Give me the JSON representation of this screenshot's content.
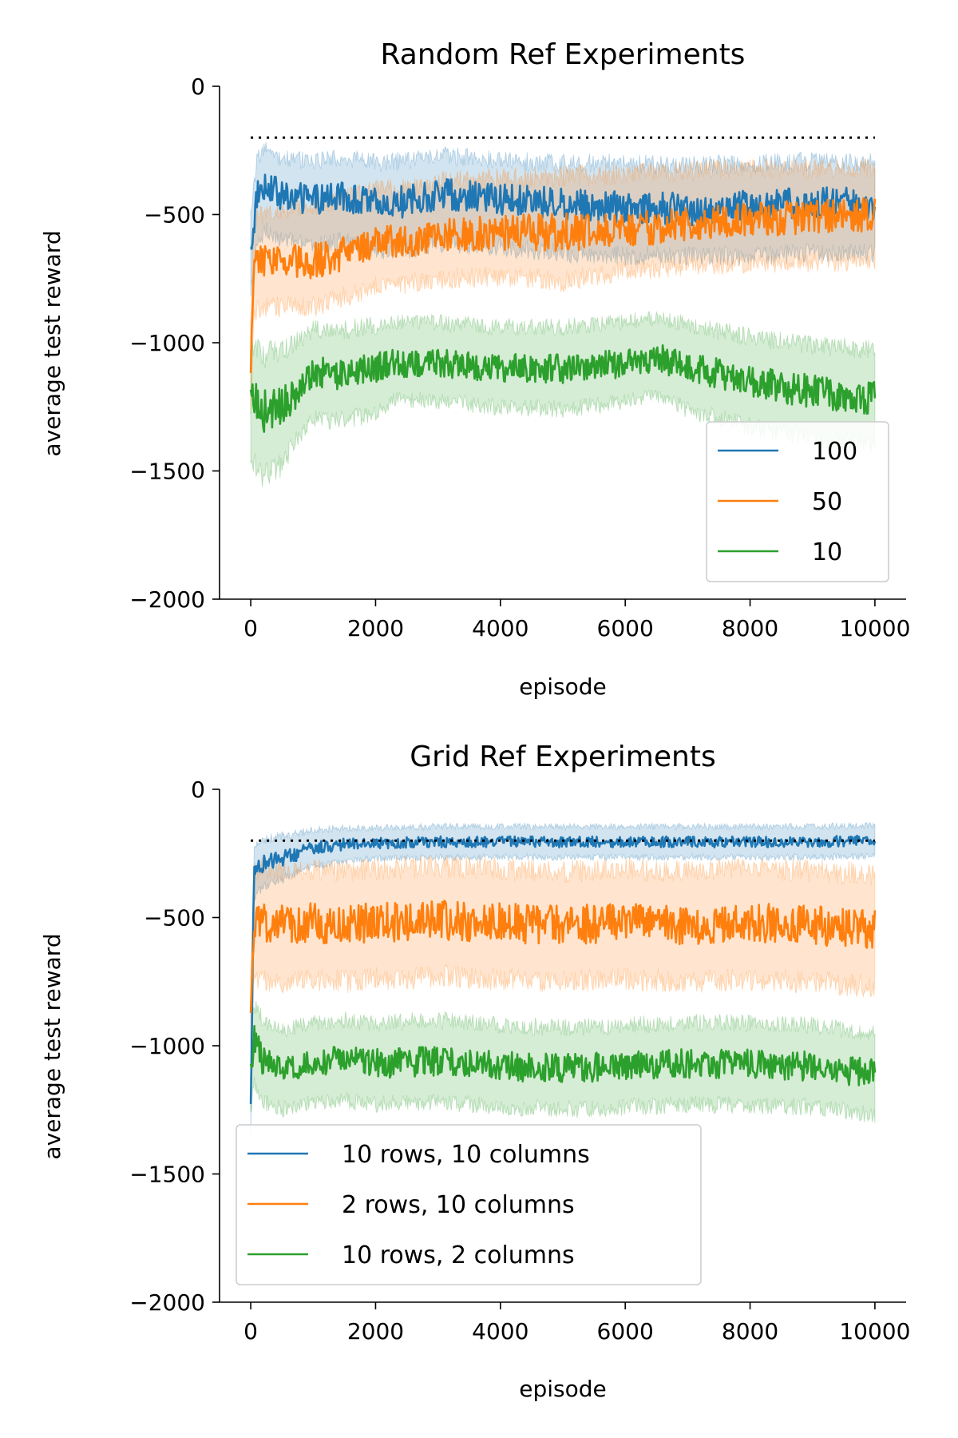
{
  "chart_data": [
    {
      "type": "line",
      "title": "Random Ref Experiments",
      "xlabel": "episode",
      "ylabel": "average test reward",
      "xlim": [
        -500,
        10500
      ],
      "ylim": [
        -2000,
        0
      ],
      "xticks": [
        0,
        2000,
        4000,
        6000,
        8000,
        10000
      ],
      "yticks": [
        0,
        -500,
        -1000,
        -1500,
        -2000
      ],
      "xtick_labels": [
        "0",
        "2000",
        "4000",
        "6000",
        "8000",
        "10000"
      ],
      "ytick_labels": [
        "0",
        "−500",
        "−1000",
        "−1500",
        "−2000"
      ],
      "grid": false,
      "legend_position": "lower-right",
      "reference_line": {
        "y": -200,
        "x": [
          0,
          10000
        ],
        "style": "dotted",
        "color": "#000000"
      },
      "series": [
        {
          "name": "100",
          "color": "#1f77b4",
          "x": [
            0,
            100,
            250,
            500,
            1000,
            1500,
            2000,
            2500,
            3000,
            4000,
            5000,
            6000,
            7000,
            8000,
            9000,
            10000
          ],
          "y": [
            -650,
            -420,
            -380,
            -430,
            -440,
            -430,
            -460,
            -450,
            -420,
            -440,
            -460,
            -470,
            -480,
            -470,
            -455,
            -460
          ],
          "band_low": [
            -800,
            -620,
            -560,
            -600,
            -620,
            -600,
            -640,
            -640,
            -610,
            -630,
            -650,
            -660,
            -660,
            -660,
            -650,
            -650
          ],
          "band_high": [
            -500,
            -280,
            -250,
            -280,
            -290,
            -280,
            -300,
            -290,
            -270,
            -290,
            -300,
            -300,
            -310,
            -300,
            -290,
            -300
          ]
        },
        {
          "name": "50",
          "color": "#ff7f0e",
          "x": [
            0,
            50,
            200,
            500,
            1000,
            1500,
            2000,
            2500,
            3000,
            4000,
            5000,
            6000,
            7000,
            8000,
            9000,
            10000
          ],
          "y": [
            -1150,
            -700,
            -680,
            -670,
            -680,
            -650,
            -600,
            -600,
            -580,
            -570,
            -570,
            -560,
            -540,
            -520,
            -510,
            -500
          ],
          "band_low": [
            -1300,
            -880,
            -860,
            -860,
            -860,
            -820,
            -780,
            -770,
            -750,
            -740,
            -760,
            -720,
            -700,
            -690,
            -690,
            -680
          ],
          "band_high": [
            -900,
            -520,
            -500,
            -480,
            -470,
            -430,
            -400,
            -400,
            -370,
            -360,
            -350,
            -340,
            -330,
            -320,
            -320,
            -320
          ]
        },
        {
          "name": "10",
          "color": "#2ca02c",
          "x": [
            0,
            200,
            500,
            800,
            1000,
            1500,
            2000,
            2300,
            3000,
            4000,
            5000,
            6000,
            6500,
            7000,
            8000,
            9000,
            10000
          ],
          "y": [
            -1220,
            -1270,
            -1250,
            -1170,
            -1120,
            -1120,
            -1100,
            -1080,
            -1080,
            -1100,
            -1100,
            -1080,
            -1060,
            -1090,
            -1150,
            -1190,
            -1220
          ],
          "band_low": [
            -1450,
            -1520,
            -1480,
            -1350,
            -1300,
            -1300,
            -1280,
            -1220,
            -1230,
            -1250,
            -1260,
            -1230,
            -1210,
            -1260,
            -1330,
            -1370,
            -1400
          ],
          "band_high": [
            -1000,
            -1050,
            -1030,
            -980,
            -950,
            -950,
            -930,
            -920,
            -920,
            -940,
            -940,
            -920,
            -900,
            -930,
            -980,
            -1010,
            -1030
          ]
        }
      ]
    },
    {
      "type": "line",
      "title": "Grid Ref Experiments",
      "xlabel": "episode",
      "ylabel": "average test reward",
      "xlim": [
        -500,
        10500
      ],
      "ylim": [
        -2000,
        0
      ],
      "xticks": [
        0,
        2000,
        4000,
        6000,
        8000,
        10000
      ],
      "yticks": [
        0,
        -500,
        -1000,
        -1500,
        -2000
      ],
      "xtick_labels": [
        "0",
        "2000",
        "4000",
        "6000",
        "8000",
        "10000"
      ],
      "ytick_labels": [
        "0",
        "−500",
        "−1000",
        "−1500",
        "−2000"
      ],
      "grid": false,
      "legend_position": "lower-left",
      "reference_line": {
        "y": -200,
        "x": [
          0,
          10000
        ],
        "style": "dotted",
        "color": "#000000"
      },
      "series": [
        {
          "name": "10 rows, 10 columns",
          "color": "#1f77b4",
          "x": [
            0,
            50,
            200,
            500,
            1000,
            1500,
            2000,
            3000,
            4000,
            5000,
            6000,
            7000,
            8000,
            9000,
            10000
          ],
          "y": [
            -1250,
            -320,
            -290,
            -270,
            -230,
            -215,
            -210,
            -205,
            -205,
            -205,
            -205,
            -205,
            -205,
            -205,
            -200
          ],
          "band_low": [
            -1350,
            -420,
            -380,
            -350,
            -300,
            -280,
            -270,
            -265,
            -265,
            -265,
            -265,
            -265,
            -265,
            -265,
            -260
          ],
          "band_high": [
            -1100,
            -230,
            -200,
            -180,
            -160,
            -150,
            -150,
            -145,
            -145,
            -145,
            -145,
            -145,
            -145,
            -145,
            -140
          ]
        },
        {
          "name": "2 rows, 10 columns",
          "color": "#ff7f0e",
          "x": [
            0,
            50,
            200,
            500,
            1000,
            1500,
            2000,
            3000,
            4000,
            5000,
            6000,
            7000,
            8000,
            9000,
            10000
          ],
          "y": [
            -900,
            -530,
            -520,
            -530,
            -520,
            -530,
            -520,
            -510,
            -520,
            -530,
            -520,
            -530,
            -520,
            -530,
            -550
          ],
          "band_low": [
            -1050,
            -750,
            -740,
            -750,
            -740,
            -750,
            -740,
            -730,
            -740,
            -750,
            -740,
            -750,
            -740,
            -750,
            -770
          ],
          "band_high": [
            -750,
            -320,
            -310,
            -320,
            -310,
            -320,
            -310,
            -300,
            -310,
            -320,
            -310,
            -320,
            -310,
            -320,
            -330
          ]
        },
        {
          "name": "10 rows, 2 columns",
          "color": "#2ca02c",
          "x": [
            0,
            50,
            200,
            500,
            1000,
            1500,
            2000,
            3000,
            4000,
            5000,
            6000,
            7000,
            8000,
            9000,
            10000
          ],
          "y": [
            -1100,
            -970,
            -1060,
            -1100,
            -1070,
            -1050,
            -1070,
            -1060,
            -1080,
            -1090,
            -1080,
            -1070,
            -1070,
            -1080,
            -1110
          ],
          "band_low": [
            -1250,
            -1150,
            -1220,
            -1250,
            -1220,
            -1210,
            -1230,
            -1220,
            -1240,
            -1250,
            -1240,
            -1230,
            -1230,
            -1240,
            -1270
          ],
          "band_high": [
            -950,
            -840,
            -900,
            -940,
            -910,
            -900,
            -910,
            -900,
            -920,
            -930,
            -920,
            -910,
            -910,
            -920,
            -950
          ]
        }
      ]
    }
  ]
}
